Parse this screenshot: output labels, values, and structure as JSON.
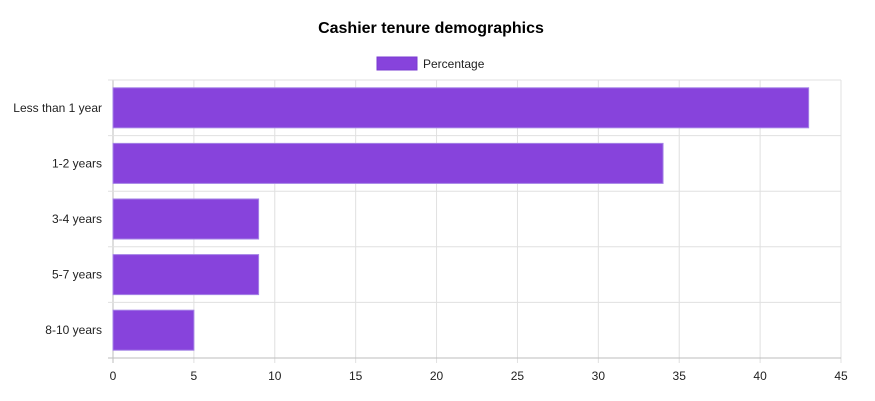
{
  "chart_data": {
    "type": "bar",
    "orientation": "horizontal",
    "title": "Cashier tenure demographics",
    "categories": [
      "Less than 1 year",
      "1-2 years",
      "3-4 years",
      "5-7 years",
      "8-10 years"
    ],
    "series": [
      {
        "name": "Percentage",
        "values": [
          43,
          34,
          9,
          9,
          5
        ],
        "color": "#8743dc"
      }
    ],
    "xlim": [
      0,
      45
    ],
    "xticks": [
      0,
      5,
      10,
      15,
      20,
      25,
      30,
      35,
      40,
      45
    ],
    "grid": true,
    "legend_position": "top-center"
  }
}
